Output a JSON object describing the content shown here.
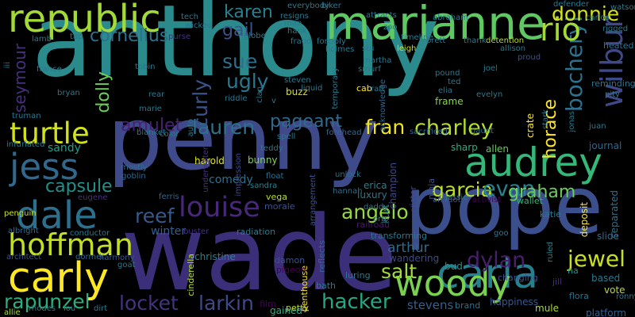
{
  "word_cloud": {
    "background": "#000000",
    "words": [
      {
        "text": "anthony",
        "color": "#2a8a8c"
      },
      {
        "text": "penny",
        "color": "#3f4a8a"
      },
      {
        "text": "wade",
        "color": "#3b2f7a"
      },
      {
        "text": "pope",
        "color": "#3b4f8c"
      },
      {
        "text": "marianne",
        "color": "#5ec962"
      },
      {
        "text": "republic",
        "color": "#a2da37"
      },
      {
        "text": "audrey",
        "color": "#35b779"
      },
      {
        "text": "carla",
        "color": "#27808e"
      },
      {
        "text": "carly",
        "color": "#fde725"
      },
      {
        "text": "woody",
        "color": "#7ad151"
      },
      {
        "text": "jess",
        "color": "#31688e"
      },
      {
        "text": "dale",
        "color": "#2d708e"
      },
      {
        "text": "hoffman",
        "color": "#c2df23"
      },
      {
        "text": "louise",
        "color": "#482878"
      },
      {
        "text": "turtle",
        "color": "#d2e21b"
      },
      {
        "text": "wilbur",
        "color": "#3e4989"
      },
      {
        "text": "bocheryl",
        "color": "#2c728e"
      },
      {
        "text": "rio",
        "color": "#a5db36"
      },
      {
        "text": "donnie",
        "color": "#d5e21a"
      },
      {
        "text": "rapunzel",
        "color": "#2ab07f"
      },
      {
        "text": "jewel",
        "color": "#c8e020"
      },
      {
        "text": "hacker",
        "color": "#22a884"
      },
      {
        "text": "locket",
        "color": "#46337e"
      },
      {
        "text": "larkin",
        "color": "#3e4a89"
      },
      {
        "text": "dylan",
        "color": "#481f70"
      },
      {
        "text": "salt",
        "color": "#a2da37"
      },
      {
        "text": "pageant",
        "color": "#31688e"
      },
      {
        "text": "charley",
        "color": "#b5de2b"
      },
      {
        "text": "fran",
        "color": "#f1e51d"
      },
      {
        "text": "lauren",
        "color": "#2c728e"
      },
      {
        "text": "curly",
        "color": "#3b528b"
      },
      {
        "text": "amulet",
        "color": "#482071"
      },
      {
        "text": "angelo",
        "color": "#95d840"
      },
      {
        "text": "reef",
        "color": "#38598c"
      },
      {
        "text": "garcia",
        "color": "#bddf26"
      },
      {
        "text": "evan",
        "color": "#25838e"
      },
      {
        "text": "graham",
        "color": "#6ccd5a"
      },
      {
        "text": "capsule",
        "color": "#21918c"
      },
      {
        "text": "sue",
        "color": "#2e6f8e"
      },
      {
        "text": "ugly",
        "color": "#2a788e"
      },
      {
        "text": "gail",
        "color": "#3b528b"
      },
      {
        "text": "karen",
        "color": "#26828e"
      },
      {
        "text": "cornelius",
        "color": "#2c728e"
      },
      {
        "text": "seymour",
        "color": "#46307e"
      },
      {
        "text": "dolly",
        "color": "#6ccd5a"
      },
      {
        "text": "horace",
        "color": "#fde725"
      },
      {
        "text": "arthur",
        "color": "#31688e"
      },
      {
        "text": "stevens",
        "color": "#355f8d"
      },
      {
        "text": "winter",
        "color": "#355f8d"
      },
      {
        "text": "sandy",
        "color": "#1f9e89"
      },
      {
        "text": "comedy",
        "color": "#2e6f8e"
      },
      {
        "text": "buzz",
        "color": "#d8e219"
      },
      {
        "text": "harold",
        "color": "#dde318"
      },
      {
        "text": "bunny",
        "color": "#7fd34e"
      },
      {
        "text": "erica",
        "color": "#26828e"
      },
      {
        "text": "luxury",
        "color": "#2a788e"
      },
      {
        "text": "frame",
        "color": "#84d44b"
      },
      {
        "text": "crate",
        "color": "#fde725"
      },
      {
        "text": "allen",
        "color": "#65cb5e"
      },
      {
        "text": "sharp",
        "color": "#2ab07f"
      },
      {
        "text": "champion",
        "color": "#3e4989"
      },
      {
        "text": "kurt",
        "color": "#2a788e"
      },
      {
        "text": "wandering",
        "color": "#3e4989"
      },
      {
        "text": "transforming",
        "color": "#2a788e"
      },
      {
        "text": "railroad",
        "color": "#48186a"
      },
      {
        "text": "journal",
        "color": "#31688e"
      },
      {
        "text": "victor",
        "color": "#414487"
      },
      {
        "text": "ninja",
        "color": "#3b528b"
      },
      {
        "text": "activist",
        "color": "#440154"
      },
      {
        "text": "wallet",
        "color": "#35b779"
      },
      {
        "text": "katie",
        "color": "#2a788e"
      },
      {
        "text": "deposit",
        "color": "#fde725"
      },
      {
        "text": "separated",
        "color": "#2c728e"
      },
      {
        "text": "slide",
        "color": "#31688e"
      },
      {
        "text": "based",
        "color": "#2a788e"
      },
      {
        "text": "na",
        "color": "#21918c"
      },
      {
        "text": "jill",
        "color": "#472d7b"
      },
      {
        "text": "bud",
        "color": "#21918c"
      },
      {
        "text": "happiness",
        "color": "#38598c"
      },
      {
        "text": "mule",
        "color": "#a8db34"
      },
      {
        "text": "brand",
        "color": "#2c728e"
      },
      {
        "text": "gained",
        "color": "#28ae80"
      },
      {
        "text": "film",
        "color": "#440154"
      },
      {
        "text": "petty",
        "color": "#bddf26"
      },
      {
        "text": "vote",
        "color": "#b5de2b"
      },
      {
        "text": "platform",
        "color": "#355f8d"
      },
      {
        "text": "flora",
        "color": "#2c728e"
      },
      {
        "text": "ronny",
        "color": "#2a788e"
      },
      {
        "text": "changing",
        "color": "#3b528b"
      },
      {
        "text": "ruled",
        "color": "#25838e"
      },
      {
        "text": "goo",
        "color": "#2a788e"
      },
      {
        "text": "luring",
        "color": "#2a788e"
      },
      {
        "text": "bath",
        "color": "#2a788e"
      },
      {
        "text": "reflects",
        "color": "#31688e"
      },
      {
        "text": "penthouse",
        "color": "#fde725"
      },
      {
        "text": "cinderella",
        "color": "#b5de2b"
      },
      {
        "text": "pigeon",
        "color": "#440154"
      },
      {
        "text": "damon",
        "color": "#3b528b"
      },
      {
        "text": "radiation",
        "color": "#2a788e"
      },
      {
        "text": "christine",
        "color": "#25838e"
      },
      {
        "text": "buster",
        "color": "#46307e"
      },
      {
        "text": "harmony",
        "color": "#38598c"
      },
      {
        "text": "dormer",
        "color": "#31688e"
      },
      {
        "text": "architect",
        "color": "#3b528b"
      },
      {
        "text": "albright",
        "color": "#31688e"
      },
      {
        "text": "conductor",
        "color": "#2a788e"
      },
      {
        "text": "goat",
        "color": "#2a788e"
      },
      {
        "text": "rhodes",
        "color": "#2a788e"
      },
      {
        "text": "lou",
        "color": "#2a788e"
      },
      {
        "text": "dirt",
        "color": "#2a788e"
      },
      {
        "text": "allie",
        "color": "#a5db36"
      },
      {
        "text": "penguin",
        "color": "#c8e020"
      },
      {
        "text": "eugene",
        "color": "#46307e"
      },
      {
        "text": "goblin",
        "color": "#31688e"
      },
      {
        "text": "mostly",
        "color": "#2c728e"
      },
      {
        "text": "ferris",
        "color": "#31688e"
      },
      {
        "text": "vega",
        "color": "#b5de2b"
      },
      {
        "text": "morale",
        "color": "#3b528b"
      },
      {
        "text": "hannah",
        "color": "#2e6f8e"
      },
      {
        "text": "daddy",
        "color": "#2a788e"
      },
      {
        "text": "orb",
        "color": "#2a788e"
      },
      {
        "text": "antidote",
        "color": "#3b528b"
      },
      {
        "text": "jessie",
        "color": "#2a788e"
      },
      {
        "text": "unlock",
        "color": "#2c728e"
      },
      {
        "text": "arrangement",
        "color": "#3b528b"
      },
      {
        "text": "sandra",
        "color": "#25838e"
      },
      {
        "text": "float",
        "color": "#2c728e"
      },
      {
        "text": "impression",
        "color": "#3e4989"
      },
      {
        "text": "underwater",
        "color": "#46307e"
      },
      {
        "text": "auto",
        "color": "#2a788e"
      },
      {
        "text": "teddy",
        "color": "#2a788e"
      },
      {
        "text": "spell",
        "color": "#2a788e"
      },
      {
        "text": "forehead",
        "color": "#31688e"
      },
      {
        "text": "sacrificed",
        "color": "#31688e"
      },
      {
        "text": "gaunt",
        "color": "#2c728e"
      },
      {
        "text": "stark",
        "color": "#2a788e"
      },
      {
        "text": "jonas",
        "color": "#2a788e"
      },
      {
        "text": "juan",
        "color": "#2a788e"
      },
      {
        "text": "pity",
        "color": "#2a788e"
      },
      {
        "text": "reminding",
        "color": "#2c728e"
      },
      {
        "text": "heated",
        "color": "#2c728e"
      },
      {
        "text": "watson",
        "color": "#2a788e"
      },
      {
        "text": "rigged",
        "color": "#2a788e"
      },
      {
        "text": "defender",
        "color": "#2a788e"
      },
      {
        "text": "carlos",
        "color": "#2a788e"
      },
      {
        "text": "abraham",
        "color": "#2a788e"
      },
      {
        "text": "attracts",
        "color": "#2a788e"
      },
      {
        "text": "biker",
        "color": "#2a788e"
      },
      {
        "text": "everybody",
        "color": "#2a788e"
      },
      {
        "text": "resigns",
        "color": "#2a788e"
      },
      {
        "text": "map",
        "color": "#2a788e"
      },
      {
        "text": "hank",
        "color": "#2a788e"
      },
      {
        "text": "tech",
        "color": "#2a788e"
      },
      {
        "text": "wicked",
        "color": "#2a788e"
      },
      {
        "text": "lamb",
        "color": "#2a788e"
      },
      {
        "text": "tap",
        "color": "#2a788e"
      },
      {
        "text": "purse",
        "color": "#46307e"
      },
      {
        "text": "globe",
        "color": "#2a788e"
      },
      {
        "text": "fraud",
        "color": "#2a788e"
      },
      {
        "text": "forcibly",
        "color": "#2a788e"
      },
      {
        "text": "holmes",
        "color": "#2a788e"
      },
      {
        "text": "zoo",
        "color": "#2a788e"
      },
      {
        "text": "timeline",
        "color": "#2a788e"
      },
      {
        "text": "brett",
        "color": "#2a788e"
      },
      {
        "text": "thank",
        "color": "#2a788e"
      },
      {
        "text": "detention",
        "color": "#b5de2b"
      },
      {
        "text": "allison",
        "color": "#2a788e"
      },
      {
        "text": "proud",
        "color": "#3b528b"
      },
      {
        "text": "leigh",
        "color": "#c8e020"
      },
      {
        "text": "stu",
        "color": "#2a788e"
      },
      {
        "text": "martha",
        "color": "#2a788e"
      },
      {
        "text": "smurf",
        "color": "#2a788e"
      },
      {
        "text": "acknowledge",
        "color": "#31688e"
      },
      {
        "text": "pound",
        "color": "#2a788e"
      },
      {
        "text": "joel",
        "color": "#2a788e"
      },
      {
        "text": "ted",
        "color": "#2a788e"
      },
      {
        "text": "elia",
        "color": "#2a788e"
      },
      {
        "text": "evelyn",
        "color": "#2a788e"
      },
      {
        "text": "cab",
        "color": "#fde725"
      },
      {
        "text": "raft",
        "color": "#2a788e"
      },
      {
        "text": "temporary",
        "color": "#2a788e"
      },
      {
        "text": "liquid",
        "color": "#2a788e"
      },
      {
        "text": "steven",
        "color": "#2a788e"
      },
      {
        "text": "clan",
        "color": "#2a788e"
      },
      {
        "text": "v",
        "color": "#2a788e"
      },
      {
        "text": "riddle",
        "color": "#2a788e"
      },
      {
        "text": "rear",
        "color": "#2a788e"
      },
      {
        "text": "marie",
        "color": "#2a788e"
      },
      {
        "text": "blanket",
        "color": "#2a788e"
      },
      {
        "text": "color",
        "color": "#2a788e"
      },
      {
        "text": "infuriated",
        "color": "#2a788e"
      },
      {
        "text": "truman",
        "color": "#2a788e"
      },
      {
        "text": "bryan",
        "color": "#2a788e"
      },
      {
        "text": "tobin",
        "color": "#2a788e"
      },
      {
        "text": "france",
        "color": "#2a788e"
      },
      {
        "text": "iii",
        "color": "#2a788e"
      }
    ]
  }
}
